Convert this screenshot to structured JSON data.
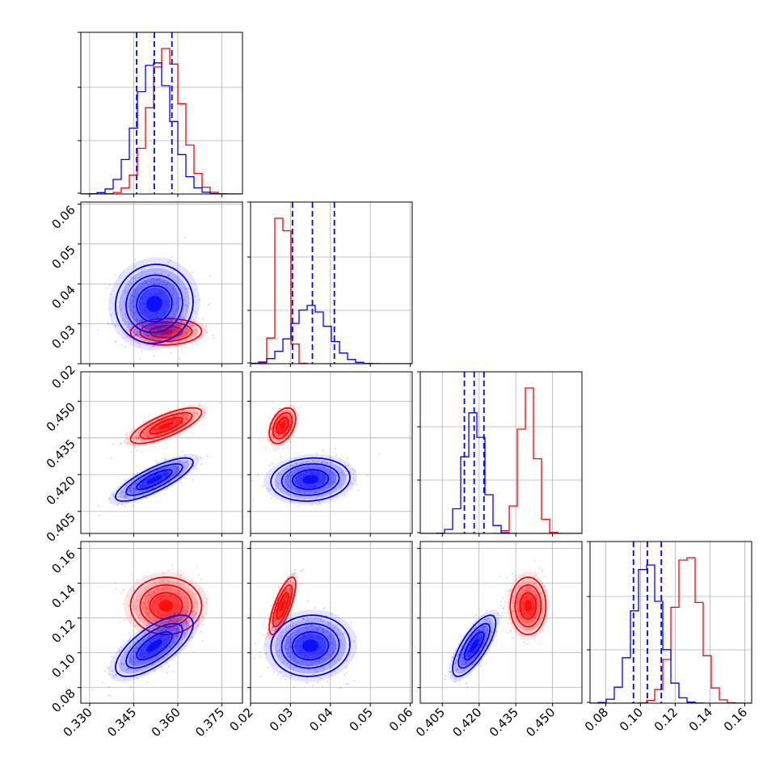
{
  "colors": {
    "red": "#ff0000",
    "blue": "#0000ff",
    "grid": "#b0b0b0"
  },
  "chart_data": {
    "type": "corner",
    "description_free": true,
    "grid": true,
    "parameters": [
      {
        "index": 0,
        "range": [
          0.327,
          0.382
        ],
        "ticks": [
          "0.330",
          "0.345",
          "0.360",
          "0.375"
        ],
        "tick_values": [
          0.33,
          0.345,
          0.36,
          0.375
        ]
      },
      {
        "index": 1,
        "range": [
          0.02,
          0.0605
        ],
        "ticks": [
          "0.02",
          "0.03",
          "0.04",
          "0.05",
          "0.06"
        ],
        "tick_values": [
          0.02,
          0.03,
          0.04,
          0.05,
          0.06
        ]
      },
      {
        "index": 2,
        "range": [
          0.396,
          0.462
        ],
        "ticks": [
          "0.405",
          "0.420",
          "0.435",
          "0.450"
        ],
        "tick_values": [
          0.405,
          0.42,
          0.435,
          0.45
        ]
      },
      {
        "index": 3,
        "range": [
          0.071,
          0.164
        ],
        "ticks": [
          "0.08",
          "0.10",
          "0.12",
          "0.14",
          "0.16"
        ],
        "tick_values": [
          0.08,
          0.1,
          0.12,
          0.14,
          0.16
        ]
      }
    ],
    "series": [
      {
        "color": "red",
        "means": [
          0.356,
          0.028,
          0.44,
          0.127
        ],
        "sigmas": [
          0.0055,
          0.0015,
          0.0033,
          0.0075
        ],
        "correlations": {
          "0-1": 0.05,
          "0-2": 0.75,
          "0-3": 0.0,
          "1-2": 0.4,
          "1-3": 0.75,
          "2-3": 0.0
        }
      },
      {
        "color": "blue",
        "means": [
          0.352,
          0.035,
          0.418,
          0.104
        ],
        "sigmas": [
          0.006,
          0.0045,
          0.004,
          0.008
        ],
        "correlations": {
          "0-1": 0.05,
          "0-2": 0.8,
          "0-3": 0.7,
          "1-2": 0.1,
          "1-3": 0.05,
          "2-3": 0.75
        }
      }
    ],
    "quantile_lines": {
      "color": "blue",
      "values": [
        [
          0.346,
          0.352,
          0.358
        ],
        [
          0.0305,
          0.0355,
          0.041
        ],
        [
          0.414,
          0.418,
          0.422
        ],
        [
          0.096,
          0.104,
          0.112
        ]
      ]
    }
  }
}
